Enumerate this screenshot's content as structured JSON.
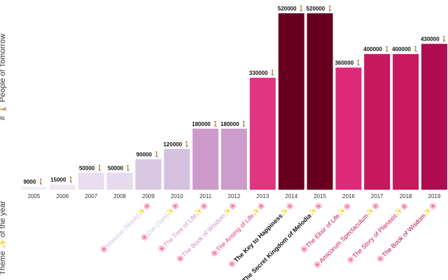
{
  "chart_data": {
    "type": "bar",
    "title": "",
    "xlabel": "",
    "ylabel": "# 🚶 People of Tomorrow",
    "ylabel2": "Theme ✨ of the year",
    "value_suffix": "🚶",
    "ylim": [
      0,
      520000
    ],
    "grid": false,
    "legend": "none",
    "categories": [
      "2005",
      "2006",
      "2007",
      "2008",
      "2009",
      "2010",
      "2011",
      "2012",
      "2013",
      "2014",
      "2015",
      "2016",
      "2017",
      "2018",
      "2019"
    ],
    "values": [
      9000,
      15000,
      50000,
      50000,
      90000,
      120000,
      180000,
      180000,
      330000,
      520000,
      520000,
      360000,
      400000,
      400000,
      430000
    ],
    "value_labels": [
      "9000 🚶",
      "15000 🚶",
      "50000 🚶",
      "50000 🚶",
      "90000 🚶",
      "120000 🚶",
      "180000 🚶",
      "180000 🚶",
      "330000 🚶",
      "520000 🚶",
      "520000 🚶",
      "360000 🚶",
      "400000 🚶",
      "400000 🚶",
      "430000 🚶"
    ],
    "themes": [
      null,
      null,
      null,
      null,
      "🌸Massive (Nasik)✨🌸",
      "🌸Zon (Sun)✨🌸",
      "🌸The Tree of Life✨🌸",
      "🌸The Book of Wisdom✨🌸",
      "🌸The Arising of Life✨🌸",
      "🌸The Key to Happiness✨🌸",
      "🌸The Secret Kingdom of Melodia✨🌸",
      "🌸The Elixir of Life✨🌸",
      "🌸Amicorum Spectaculum✨🌸",
      "🌸The Story of Planaxis✨🌸",
      "🌸The Book of Wisdom✨🌸"
    ],
    "colors": [
      "#f2eef6",
      "#efe9f3",
      "#e8def0",
      "#e6daee",
      "#dac8e3",
      "#d6c0e0",
      "#cc9bcb",
      "#cc9ccb",
      "#e0357f",
      "#67001f",
      "#67001f",
      "#dd2a78",
      "#c8175e",
      "#c9185f",
      "#ad0d50"
    ],
    "theme_colors": [
      "#dddddd",
      "#dddddd",
      "#dddddd",
      "#dddddd",
      "#d6c4e0",
      "#d2bcdd",
      "#c990c4",
      "#c990c4",
      "#dd3580",
      "#111111",
      "#111111",
      "#c8175e",
      "#c8175e",
      "#c8175e",
      "#ad0d50"
    ]
  }
}
